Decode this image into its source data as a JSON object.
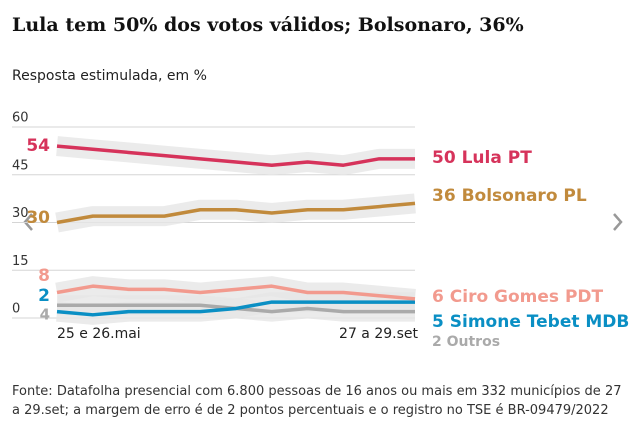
{
  "chart_data": {
    "type": "line",
    "title": "Lula tem 50% dos votos válidos; Bolsonaro, 36%",
    "subtitle": "Resposta estimulada, em %",
    "categories": [
      "25 e 26.mai",
      null,
      null,
      null,
      null,
      null,
      null,
      null,
      null,
      null,
      "27 a 29.set"
    ],
    "series": [
      {
        "name": "Lula PT",
        "color": "#d6335b",
        "values": [
          54,
          53,
          52,
          51,
          50,
          49,
          48,
          49,
          48,
          50,
          50
        ]
      },
      {
        "name": "Bolsonaro PL",
        "color": "#c18a3c",
        "values": [
          30,
          32,
          32,
          32,
          34,
          34,
          33,
          34,
          34,
          35,
          36
        ]
      },
      {
        "name": "Ciro Gomes PDT",
        "color": "#f29a8e",
        "values": [
          8,
          10,
          9,
          9,
          8,
          9,
          10,
          8,
          8,
          7,
          6
        ]
      },
      {
        "name": "Simone Tebet MDB",
        "color": "#0a8fc4",
        "values": [
          2,
          1,
          2,
          2,
          2,
          3,
          5,
          5,
          5,
          5,
          5
        ]
      },
      {
        "name": "Outros",
        "color": "#aaaaaa",
        "values": [
          4,
          4,
          4,
          4,
          4,
          3,
          2,
          3,
          2,
          2,
          2
        ]
      }
    ],
    "ylim": [
      0,
      60
    ],
    "yticks": [
      0,
      15,
      30,
      45,
      60
    ],
    "grid": true,
    "source": "Fonte: Datafolha presencial com 6.800 pessoas de 16 anos ou mais em 332 municípios de 27 a 29.set; a margem de erro é de 2 pontos percentuais e o registro no TSE é BR-09479/2022"
  }
}
